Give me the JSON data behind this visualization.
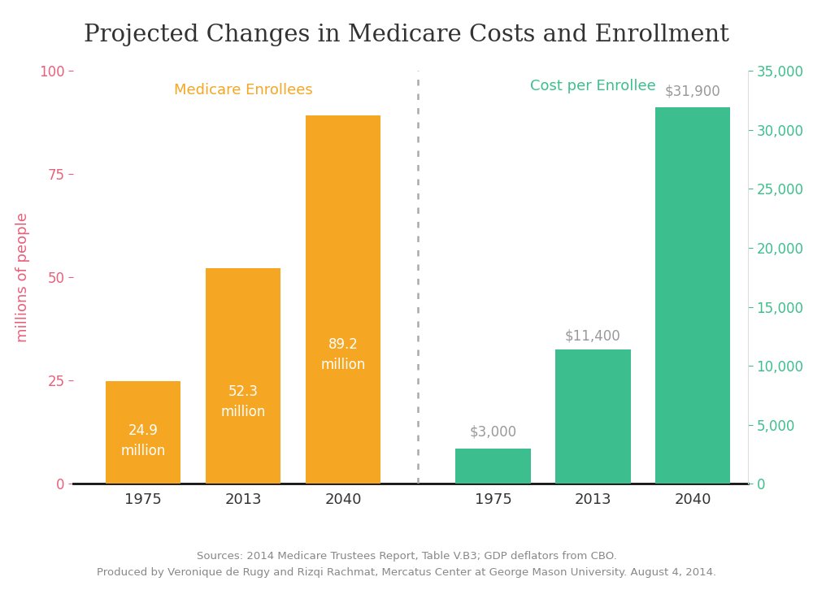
{
  "title": "Projected Changes in Medicare Costs and Enrollment",
  "background_color": "#ffffff",
  "enrollee_years": [
    "1975",
    "2013",
    "2040"
  ],
  "enrollee_values": [
    24.9,
    52.3,
    89.2
  ],
  "enrollee_color": "#F5A623",
  "cost_years": [
    "1975",
    "2013",
    "2040"
  ],
  "cost_values": [
    3000,
    11400,
    31900
  ],
  "cost_color": "#3DBE8E",
  "left_ylabel": "millions of people",
  "left_ylabel_color": "#E8607A",
  "right_ylabel_color": "#3DBE8E",
  "left_ylim": [
    0,
    100
  ],
  "right_ylim": [
    0,
    35000
  ],
  "left_yticks": [
    0,
    25,
    50,
    75,
    100
  ],
  "right_yticks": [
    0,
    5000,
    10000,
    15000,
    20000,
    25000,
    30000,
    35000
  ],
  "enrollee_label_color": "#ffffff",
  "cost_label_color": "#999999",
  "enrollee_annotation": [
    "24.9\nmillion",
    "52.3\nmillion",
    "89.2\nmillion"
  ],
  "cost_annotation": [
    "$3,000",
    "$11,400",
    "$31,900"
  ],
  "left_series_label": "Medicare Enrollees",
  "right_series_label": "Cost per Enrollee",
  "left_series_label_color": "#F5A623",
  "right_series_label_color": "#3DBE8E",
  "source_text": "Sources: 2014 Medicare Trustees Report, Table V.B3; GDP deflators from CBO.\nProduced by Veronique de Rugy and Rizqi Rachmat, Mercatus Center at George Mason University. August 4, 2014.",
  "source_color": "#888888",
  "divider_color": "#aaaaaa",
  "tick_color": "#E8607A",
  "right_tick_color": "#3DBE8E",
  "xtick_color": "#333333",
  "title_color": "#333333",
  "bar_width": 0.75,
  "figsize": [
    10.0,
    7.26
  ],
  "dpi": 100
}
